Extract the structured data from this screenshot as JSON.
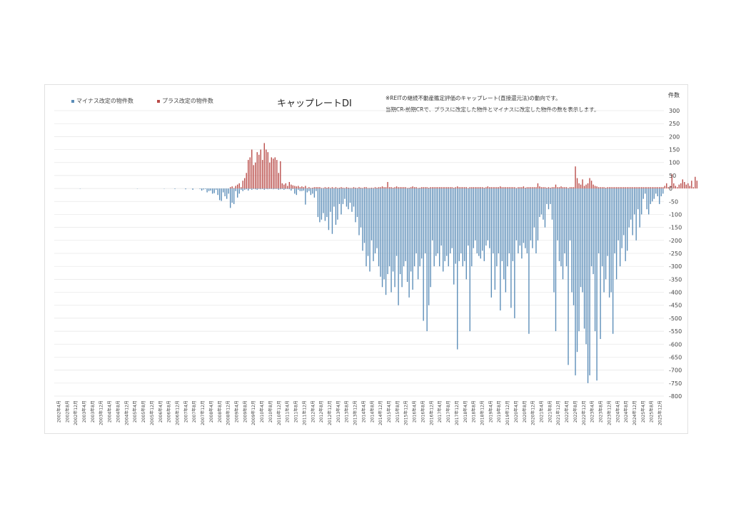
{
  "chart_data": {
    "type": "bar",
    "title": "キャップレートDI",
    "notes": [
      "※REITの継続不動産鑑定評価のキャップレート(直接還元法)の動向です。",
      "当期CR-前期CRで、プラスに改定した物件とマイナスに改定した物件の数を表示します。"
    ],
    "unit_label": "件数",
    "ylim": [
      -800,
      300
    ],
    "yticks": [
      300,
      250,
      200,
      150,
      100,
      50,
      0,
      -50,
      -100,
      -150,
      -200,
      -250,
      -300,
      -350,
      -400,
      -450,
      -500,
      -550,
      -600,
      -650,
      -700,
      -750,
      -800
    ],
    "x_tick_labels": [
      "2002年4月",
      "2002年8月",
      "2002年12月",
      "2003年4月",
      "2003年8月",
      "2003年12月",
      "2004年4月",
      "2004年8月",
      "2004年12月",
      "2005年4月",
      "2005年8月",
      "2005年12月",
      "2006年4月",
      "2006年8月",
      "2006年12月",
      "2007年4月",
      "2007年8月",
      "2007年12月",
      "2008年4月",
      "2008年8月",
      "2008年12月",
      "2009年4月",
      "2009年8月",
      "2009年12月",
      "2010年4月",
      "2010年8月",
      "2010年12月",
      "2011年4月",
      "2011年8月",
      "2011年12月",
      "2012年4月",
      "2012年8月",
      "2012年12月",
      "2013年4月",
      "2013年8月",
      "2013年12月",
      "2014年4月",
      "2014年8月",
      "2014年12月",
      "2015年4月",
      "2015年8月",
      "2015年12月",
      "2016年4月",
      "2016年8月",
      "2016年12月",
      "2017年4月",
      "2017年8月",
      "2017年12月",
      "2018年4月",
      "2018年8月",
      "2018年12月",
      "2019年4月",
      "2019年8月",
      "2019年12月",
      "2020年4月",
      "2020年8月",
      "2020年12月",
      "2021年4月",
      "2021年8月",
      "2021年12月",
      "2022年4月",
      "2022年8月",
      "2022年12月",
      "2023年4月",
      "2023年8月",
      "2023年12月",
      "2024年4月",
      "2024年8月",
      "2024年12月",
      "2025年4月",
      "2025年8月",
      "2025年12月"
    ],
    "series": [
      {
        "name": "マイナス改定の物件数",
        "color": "#5b8db8",
        "values": [
          0,
          0,
          0,
          0,
          0,
          0,
          0,
          0,
          0,
          0,
          0,
          0,
          0,
          0,
          -1,
          0,
          0,
          0,
          0,
          0,
          0,
          0,
          0,
          0,
          0,
          0,
          0,
          0,
          0,
          0,
          0,
          0,
          0,
          0,
          0,
          0,
          0,
          0,
          0,
          0,
          0,
          0,
          0,
          0,
          0,
          0,
          -1,
          0,
          0,
          0,
          0,
          0,
          0,
          0,
          0,
          0,
          0,
          0,
          0,
          0,
          0,
          -1,
          0,
          0,
          0,
          0,
          0,
          -2,
          0,
          0,
          0,
          0,
          0,
          -3,
          0,
          0,
          0,
          -5,
          0,
          0,
          0,
          -2,
          -8,
          -4,
          -2,
          -15,
          -10,
          -8,
          -20,
          -18,
          -5,
          -25,
          -45,
          -48,
          -15,
          -30,
          -40,
          -20,
          -75,
          -55,
          -60,
          -10,
          -35,
          -20,
          -5,
          -10,
          -5,
          -3,
          -8,
          -2,
          -5,
          -2,
          -3,
          -5,
          -2,
          -3,
          -2,
          -5,
          -2,
          -3,
          -2,
          -2,
          -3,
          -2,
          -2,
          -5,
          -3,
          -2,
          -5,
          -2,
          -2,
          -3,
          -8,
          -2,
          -20,
          -25,
          -5,
          -10,
          -10,
          -8,
          -62,
          -15,
          -10,
          -25,
          -20,
          -35,
          -10,
          -110,
          -130,
          -120,
          -95,
          -125,
          -110,
          -160,
          -90,
          -175,
          -70,
          -140,
          -120,
          -60,
          -100,
          -60,
          -40,
          -70,
          -80,
          -55,
          -90,
          -70,
          -130,
          -110,
          -180,
          -150,
          -240,
          -210,
          -300,
          -260,
          -320,
          -200,
          -280,
          -250,
          -230,
          -300,
          -340,
          -380,
          -350,
          -410,
          -330,
          -300,
          -400,
          -320,
          -380,
          -260,
          -450,
          -330,
          -380,
          -300,
          -280,
          -360,
          -420,
          -320,
          -390,
          -300,
          -250,
          -350,
          -300,
          -270,
          -510,
          -250,
          -550,
          -450,
          -380,
          -200,
          -300,
          -260,
          -250,
          -300,
          -220,
          -320,
          -280,
          -260,
          -300,
          -250,
          -230,
          -370,
          -290,
          -620,
          -280,
          -250,
          -300,
          -280,
          -350,
          -220,
          -550,
          -300,
          -230,
          -200,
          -250,
          -260,
          -270,
          -240,
          -280,
          -220,
          -200,
          -230,
          -420,
          -250,
          -390,
          -300,
          -250,
          -470,
          -280,
          -350,
          -400,
          -300,
          -250,
          -460,
          -280,
          -500,
          -200,
          -250,
          -220,
          -270,
          -210,
          -230,
          -250,
          -560,
          -200,
          -230,
          -150,
          -250,
          -200,
          -110,
          -100,
          -120,
          -150,
          -60,
          -80,
          -60,
          -120,
          -400,
          -550,
          -200,
          -280,
          -300,
          -350,
          -250,
          -300,
          -680,
          -200,
          -400,
          -450,
          -720,
          -630,
          -550,
          -380,
          -400,
          -540,
          -600,
          -750,
          -720,
          -300,
          -330,
          -550,
          -740,
          -250,
          -580,
          -300,
          -400,
          -350,
          -260,
          -420,
          -400,
          -560,
          -250,
          -350,
          -200,
          -300,
          -230,
          -180,
          -280,
          -240,
          -150,
          -120,
          -180,
          -100,
          -200,
          -80,
          -150,
          -100,
          -40,
          -20,
          -80,
          -100,
          -60,
          -50,
          -40,
          -20,
          -30,
          -60,
          -30,
          -20
        ]
      },
      {
        "name": "プラス改定の物件数",
        "color": "#b94b48",
        "values": [
          0,
          0,
          0,
          0,
          0,
          0,
          0,
          0,
          0,
          0,
          0,
          0,
          0,
          0,
          0,
          0,
          0,
          0,
          0,
          0,
          0,
          0,
          0,
          0,
          0,
          0,
          0,
          0,
          0,
          0,
          0,
          0,
          0,
          0,
          0,
          0,
          0,
          0,
          0,
          0,
          0,
          0,
          0,
          0,
          0,
          0,
          0,
          0,
          0,
          0,
          0,
          0,
          0,
          0,
          0,
          0,
          0,
          0,
          0,
          0,
          0,
          0,
          0,
          0,
          0,
          0,
          0,
          0,
          0,
          0,
          0,
          0,
          0,
          0,
          0,
          0,
          0,
          0,
          0,
          0,
          0,
          0,
          0,
          0,
          0,
          0,
          0,
          0,
          0,
          0,
          0,
          0,
          0,
          0,
          0,
          0,
          0,
          0,
          5,
          8,
          2,
          10,
          15,
          20,
          5,
          30,
          40,
          60,
          110,
          120,
          150,
          90,
          100,
          140,
          130,
          150,
          110,
          175,
          150,
          140,
          100,
          120,
          115,
          120,
          110,
          60,
          105,
          20,
          15,
          20,
          10,
          25,
          15,
          12,
          10,
          8,
          10,
          5,
          8,
          5,
          10,
          2,
          5,
          2,
          3,
          5,
          5,
          5,
          5,
          2,
          2,
          5,
          3,
          5,
          2,
          5,
          2,
          5,
          2,
          3,
          5,
          3,
          2,
          5,
          3,
          2,
          2,
          5,
          3,
          2,
          5,
          3,
          2,
          5,
          5,
          2,
          2,
          3,
          2,
          5,
          3,
          5,
          5,
          8,
          5,
          5,
          25,
          5,
          5,
          3,
          5,
          8,
          5,
          5,
          5,
          5,
          5,
          2,
          3,
          5,
          8,
          5,
          5,
          2,
          3,
          5,
          5,
          5,
          5,
          3,
          5,
          5,
          5,
          5,
          5,
          5,
          5,
          5,
          5,
          5,
          5,
          5,
          5,
          3,
          5,
          8,
          5,
          5,
          5,
          5,
          5,
          2,
          5,
          5,
          5,
          5,
          5,
          5,
          5,
          5,
          3,
          5,
          8,
          5,
          5,
          5,
          5,
          5,
          5,
          8,
          5,
          5,
          5,
          5,
          5,
          5,
          5,
          5,
          2,
          5,
          5,
          5,
          8,
          3,
          5,
          5,
          5,
          5,
          5,
          5,
          20,
          8,
          5,
          5,
          5,
          3,
          5,
          3,
          5,
          5,
          15,
          5,
          5,
          8,
          5,
          5,
          5,
          2,
          5,
          5,
          5,
          85,
          40,
          20,
          15,
          35,
          10,
          15,
          20,
          40,
          30,
          15,
          10,
          8,
          5,
          5,
          5,
          5,
          3,
          5,
          5,
          5,
          5,
          5,
          5,
          5,
          5,
          5,
          5,
          5,
          5,
          5,
          5,
          5,
          5,
          5,
          5,
          5,
          5,
          5,
          5,
          5,
          5,
          5,
          5,
          5,
          5,
          5,
          5,
          5,
          5,
          10,
          20,
          5,
          10,
          55,
          20,
          10,
          5,
          15,
          20,
          35,
          25,
          15,
          20,
          10,
          30,
          5,
          45,
          30
        ]
      }
    ],
    "gridlines": true,
    "legend_position": "top-left"
  }
}
